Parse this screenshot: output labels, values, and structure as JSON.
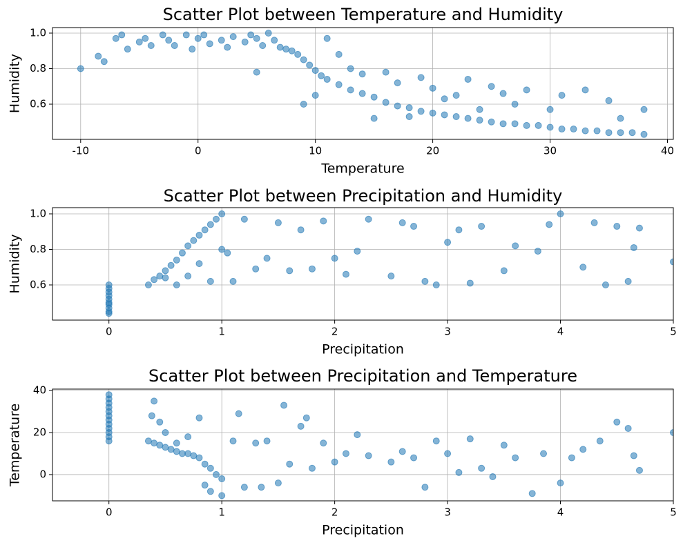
{
  "chart_data": [
    {
      "type": "scatter",
      "title": "Scatter Plot between Temperature and Humidity",
      "xlabel": "Temperature",
      "ylabel": "Humidity",
      "color": "#1f77b4",
      "grid": true,
      "xlim": [
        -12.4,
        40.5
      ],
      "ylim": [
        0.402,
        1.031
      ],
      "xticks": [
        -10,
        0,
        10,
        20,
        30,
        40
      ],
      "yticks": [
        0.6,
        0.8,
        {
          "value": 1,
          "label": "1.0"
        }
      ],
      "x": [
        -10,
        -8.5,
        -8,
        -7,
        -6.5,
        -6,
        -5,
        -4.5,
        -4,
        -3,
        -2.5,
        -2,
        -1,
        -0.5,
        0,
        0.5,
        1,
        2,
        2.5,
        3,
        4,
        4.5,
        5,
        5.5,
        6,
        6.5,
        7,
        7.5,
        8,
        8.5,
        9,
        9.5,
        10,
        10.5,
        11,
        12,
        13,
        14,
        15,
        16,
        17,
        18,
        19,
        20,
        21,
        22,
        23,
        24,
        25,
        26,
        27,
        28,
        29,
        30,
        31,
        32,
        33,
        34,
        35,
        36,
        37,
        38,
        5,
        9,
        10,
        11,
        12,
        13,
        14,
        15,
        16,
        17,
        18,
        19,
        20,
        21,
        22,
        23,
        24,
        25,
        26,
        27,
        28,
        30,
        31,
        33,
        35,
        36,
        38
      ],
      "y": [
        0.8,
        0.87,
        0.84,
        0.97,
        0.99,
        0.91,
        0.95,
        0.97,
        0.93,
        0.99,
        0.96,
        0.93,
        0.99,
        0.91,
        0.97,
        0.99,
        0.94,
        0.96,
        0.92,
        0.98,
        0.95,
        0.99,
        0.97,
        0.93,
        1.0,
        0.96,
        0.92,
        0.91,
        0.9,
        0.88,
        0.85,
        0.82,
        0.79,
        0.76,
        0.74,
        0.71,
        0.68,
        0.66,
        0.64,
        0.61,
        0.59,
        0.58,
        0.56,
        0.55,
        0.54,
        0.53,
        0.52,
        0.51,
        0.5,
        0.49,
        0.49,
        0.48,
        0.48,
        0.47,
        0.46,
        0.46,
        0.45,
        0.45,
        0.44,
        0.44,
        0.44,
        0.43,
        0.78,
        0.6,
        0.65,
        0.97,
        0.88,
        0.8,
        0.77,
        0.52,
        0.78,
        0.72,
        0.53,
        0.75,
        0.69,
        0.63,
        0.65,
        0.74,
        0.57,
        0.7,
        0.66,
        0.6,
        0.68,
        0.57,
        0.65,
        0.68,
        0.62,
        0.52,
        0.57
      ]
    },
    {
      "type": "scatter",
      "title": "Scatter Plot between Precipitation and Humidity",
      "xlabel": "Precipitation",
      "ylabel": "Humidity",
      "color": "#1f77b4",
      "grid": true,
      "xlim": [
        -0.5,
        5
      ],
      "ylim": [
        0.402,
        1.035
      ],
      "xticks": [
        0,
        1,
        2,
        3,
        4,
        5
      ],
      "yticks": [
        0.6,
        0.8,
        {
          "value": 1,
          "label": "1.0"
        }
      ],
      "x": [
        0,
        0,
        0,
        0,
        0,
        0,
        0,
        0,
        0,
        0,
        0.35,
        0.4,
        0.45,
        0.5,
        0.55,
        0.6,
        0.65,
        0.7,
        0.75,
        0.8,
        0.85,
        0.9,
        0.95,
        1.0,
        0.5,
        0.6,
        0.7,
        0.8,
        0.9,
        1.0,
        1.05,
        1.1,
        1.2,
        1.3,
        1.4,
        1.5,
        1.6,
        1.7,
        1.8,
        1.9,
        2.0,
        2.1,
        2.2,
        2.3,
        2.5,
        2.6,
        2.7,
        2.8,
        2.9,
        3.0,
        3.1,
        3.2,
        3.3,
        3.5,
        3.6,
        3.8,
        3.9,
        4.0,
        4.2,
        4.3,
        4.4,
        4.5,
        4.6,
        4.65,
        4.7,
        5.0
      ],
      "y": [
        0.44,
        0.47,
        0.5,
        0.52,
        0.54,
        0.56,
        0.58,
        0.6,
        0.45,
        0.49,
        0.6,
        0.63,
        0.65,
        0.68,
        0.71,
        0.74,
        0.78,
        0.82,
        0.85,
        0.88,
        0.91,
        0.94,
        0.97,
        1.0,
        0.64,
        0.6,
        0.65,
        0.72,
        0.62,
        0.8,
        0.78,
        0.62,
        0.97,
        0.69,
        0.75,
        0.95,
        0.68,
        0.91,
        0.69,
        0.96,
        0.75,
        0.66,
        0.79,
        0.97,
        0.65,
        0.95,
        0.93,
        0.62,
        0.6,
        0.84,
        0.91,
        0.61,
        0.93,
        0.68,
        0.82,
        0.79,
        0.94,
        1.0,
        0.7,
        0.95,
        0.6,
        0.93,
        0.62,
        0.81,
        0.92,
        0.73
      ]
    },
    {
      "type": "scatter",
      "title": "Scatter Plot between Precipitation and Temperature",
      "xlabel": "Precipitation",
      "ylabel": "Temperature",
      "color": "#1f77b4",
      "grid": true,
      "xlim": [
        -0.5,
        5
      ],
      "ylim": [
        -12.5,
        40.7
      ],
      "xticks": [
        0,
        1,
        2,
        3,
        4,
        5
      ],
      "yticks": [
        0,
        20,
        40
      ],
      "x": [
        0,
        0,
        0,
        0,
        0,
        0,
        0,
        0,
        0,
        0,
        0,
        0,
        0.35,
        0.4,
        0.45,
        0.5,
        0.55,
        0.6,
        0.65,
        0.7,
        0.75,
        0.8,
        0.85,
        0.9,
        0.95,
        1.0,
        0.38,
        0.4,
        0.45,
        0.5,
        0.6,
        0.7,
        0.8,
        0.85,
        0.9,
        1.0,
        1.1,
        1.15,
        1.2,
        1.3,
        1.35,
        1.4,
        1.5,
        1.55,
        1.6,
        1.7,
        1.75,
        1.8,
        1.9,
        2.0,
        2.1,
        2.2,
        2.3,
        2.5,
        2.6,
        2.7,
        2.8,
        2.9,
        3.0,
        3.1,
        3.2,
        3.3,
        3.4,
        3.5,
        3.6,
        3.75,
        3.85,
        4.0,
        4.1,
        4.2,
        4.35,
        4.5,
        4.6,
        4.65,
        4.7,
        5.0
      ],
      "y": [
        16,
        18,
        20,
        22,
        24,
        26,
        28,
        30,
        32,
        34,
        36,
        38,
        16,
        15,
        14,
        13,
        12,
        11,
        10,
        10,
        9,
        8,
        5,
        3,
        0,
        -2,
        28,
        35,
        25,
        20,
        15,
        18,
        27,
        -5,
        -8,
        -10,
        16,
        29,
        -6,
        15,
        -6,
        16,
        -4,
        33,
        5,
        23,
        27,
        3,
        15,
        6,
        10,
        19,
        9,
        6,
        11,
        8,
        -6,
        16,
        10,
        1,
        17,
        3,
        -1,
        14,
        8,
        -9,
        10,
        -4,
        8,
        12,
        16,
        25,
        22,
        9,
        2,
        20
      ]
    }
  ]
}
